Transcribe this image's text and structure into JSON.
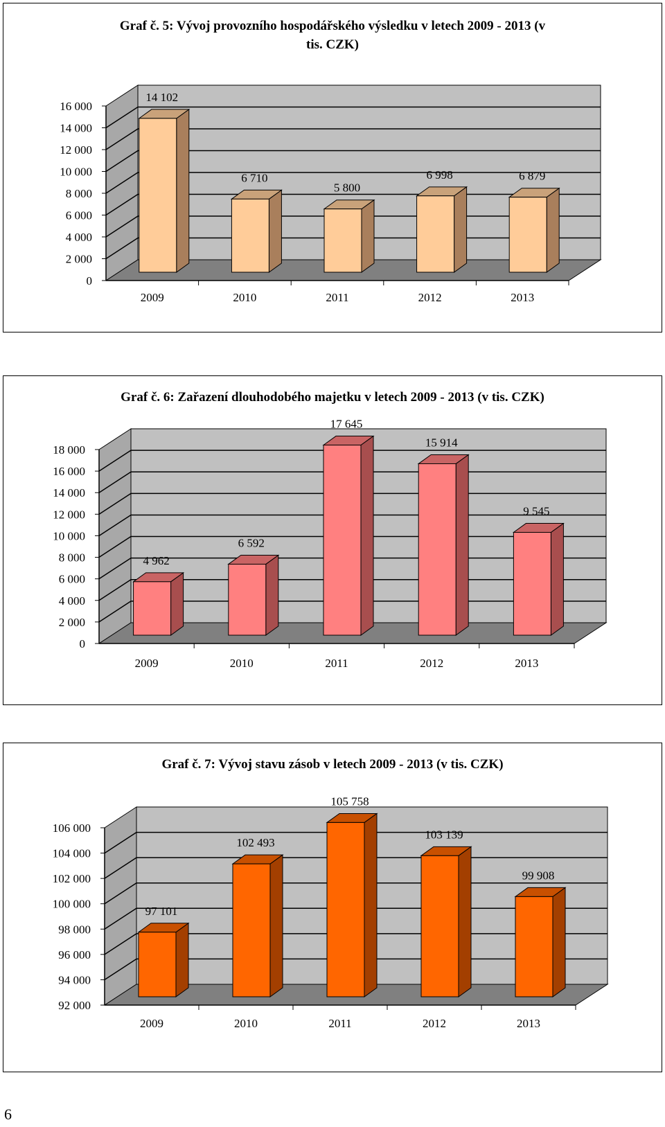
{
  "page": {
    "number": "6"
  },
  "chart_data": [
    {
      "type": "bar",
      "title": "Graf č. 5: Vývoj  provozního  hospodářského  výsledku  v  letech 2009 - 2013 (v",
      "title_line2": "tis. CZK)",
      "categories": [
        "2009",
        "2010",
        "2011",
        "2012",
        "2013"
      ],
      "values": [
        14102,
        6710,
        5800,
        6998,
        6879
      ],
      "value_labels": [
        "14 102",
        "6 710",
        "5 800",
        "6 998",
        "6 879"
      ],
      "yticks": [
        "0",
        "2 000",
        "4 000",
        "6 000",
        "8 000",
        "10 000",
        "12 000",
        "14 000",
        "16 000"
      ],
      "ylim": [
        0,
        16000
      ],
      "style": "3d",
      "grid": true,
      "colors": {
        "front": "#FFCC99",
        "side": "#A97F5C",
        "top": "#C9A27A"
      }
    },
    {
      "type": "bar",
      "title": "Graf  č. 6: Zařazení  dlouhodobého  majetku  v  letech 2009 - 2013 (v  tis. CZK)",
      "categories": [
        "2009",
        "2010",
        "2011",
        "2012",
        "2013"
      ],
      "values": [
        4962,
        6592,
        17645,
        15914,
        9545
      ],
      "value_labels": [
        "4 962",
        "6 592",
        "17 645",
        "15 914",
        "9 545"
      ],
      "yticks": [
        "0",
        "2 000",
        "4 000",
        "6 000",
        "8 000",
        "10 000",
        "12 000",
        "14 000",
        "16 000",
        "18 000"
      ],
      "ylim": [
        0,
        18000
      ],
      "style": "3d",
      "grid": true,
      "colors": {
        "front": "#FF8080",
        "side": "#A84E4E",
        "top": "#C96464"
      }
    },
    {
      "type": "bar",
      "title": "Graf  č. 7: Vývoj  stavu  zásob  v  letech 2009 - 2013 (v  tis. CZK)",
      "categories": [
        "2009",
        "2010",
        "2011",
        "2012",
        "2013"
      ],
      "values": [
        97101,
        102493,
        105758,
        103139,
        99908
      ],
      "value_labels": [
        "97  101",
        "102 493",
        "105 758",
        "103  139",
        "99  908"
      ],
      "yticks": [
        "92 000",
        "94 000",
        "96 000",
        "98 000",
        "100 000",
        "102 000",
        "104 000",
        "106 000"
      ],
      "ylim": [
        92000,
        106000
      ],
      "style": "3d",
      "grid": true,
      "colors": {
        "front": "#FF6600",
        "side": "#A33F00",
        "top": "#C85000"
      }
    }
  ]
}
